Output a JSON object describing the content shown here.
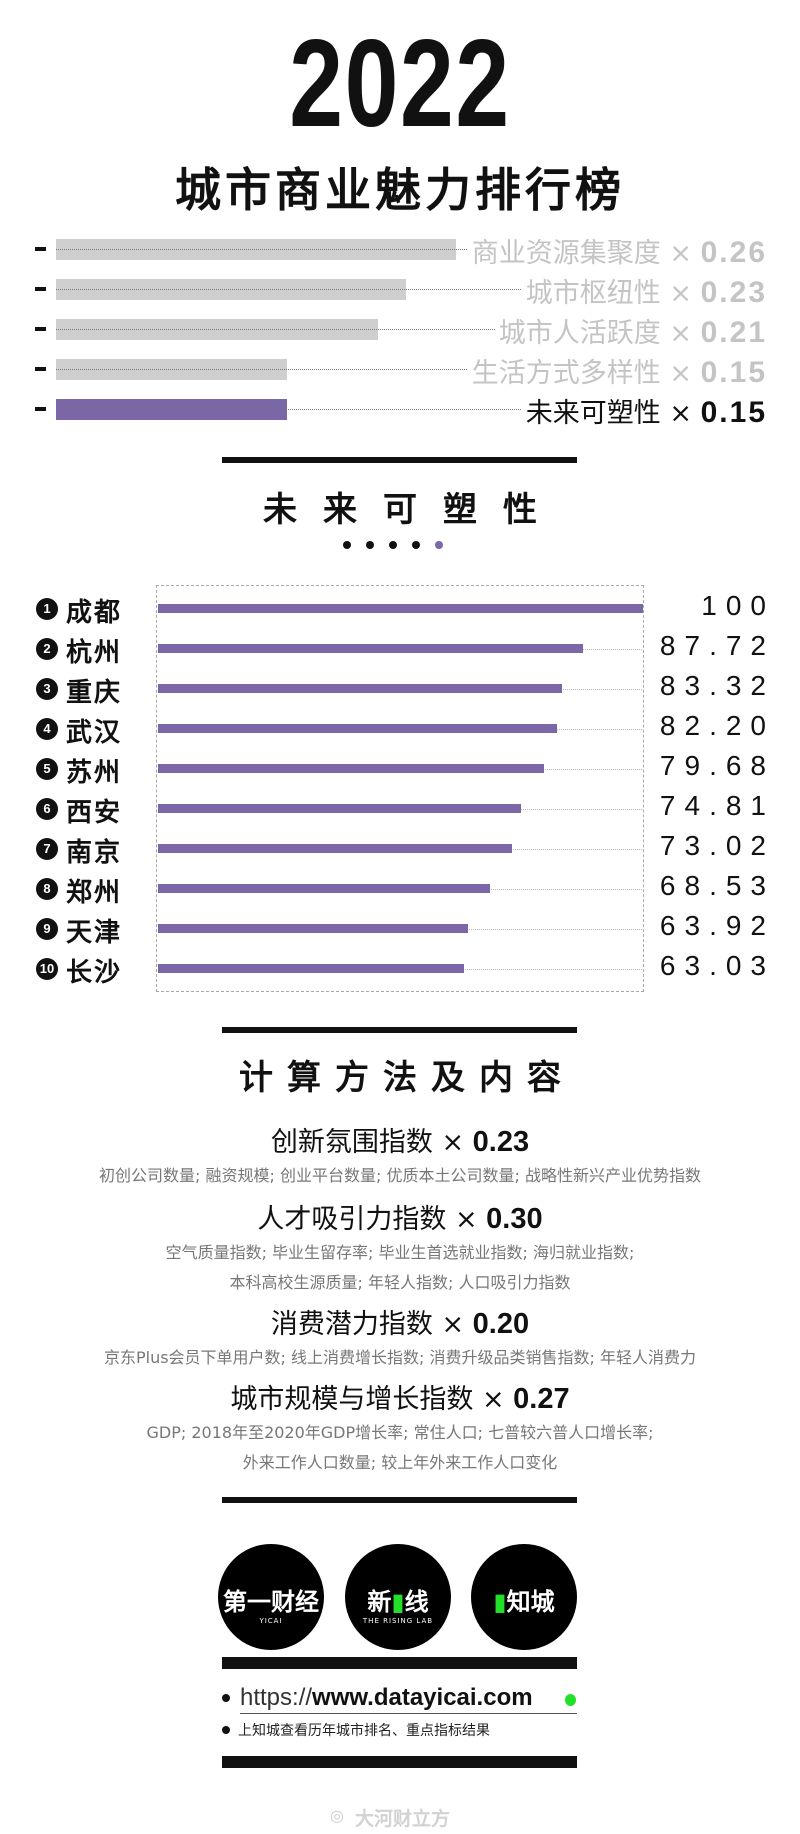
{
  "header": {
    "year": "2022",
    "subtitle": "城市商业魅力排行榜"
  },
  "weights": [
    {
      "label": "商业资源集聚度",
      "mult": "×",
      "value": "0.26",
      "active": false
    },
    {
      "label": "城市枢纽性",
      "mult": "×",
      "value": "0.23",
      "active": false
    },
    {
      "label": "城市人活跃度",
      "mult": "×",
      "value": "0.21",
      "active": false
    },
    {
      "label": "生活方式多样性",
      "mult": "×",
      "value": "0.15",
      "active": false
    },
    {
      "label": "未来可塑性",
      "mult": "×",
      "value": "0.15",
      "active": true
    }
  ],
  "section1": {
    "title": "未来可塑性"
  },
  "ranking": [
    {
      "rank": "1",
      "city": "成都",
      "score": "100"
    },
    {
      "rank": "2",
      "city": "杭州",
      "score": "87.72"
    },
    {
      "rank": "3",
      "city": "重庆",
      "score": "83.32"
    },
    {
      "rank": "4",
      "city": "武汉",
      "score": "82.20"
    },
    {
      "rank": "5",
      "city": "苏州",
      "score": "79.68"
    },
    {
      "rank": "6",
      "city": "西安",
      "score": "74.81"
    },
    {
      "rank": "7",
      "city": "南京",
      "score": "73.02"
    },
    {
      "rank": "8",
      "city": "郑州",
      "score": "68.53"
    },
    {
      "rank": "9",
      "city": "天津",
      "score": "63.92"
    },
    {
      "rank": "10",
      "city": "长沙",
      "score": "63.03"
    }
  ],
  "section2": {
    "title": "计算方法及内容"
  },
  "methods": [
    {
      "title": "创新氛围指数",
      "mult": "×",
      "value": "0.23",
      "details": [
        "初创公司数量; 融资规模; 创业平台数量; 优质本土公司数量; 战略性新兴产业优势指数"
      ]
    },
    {
      "title": "人才吸引力指数",
      "mult": "×",
      "value": "0.30",
      "details": [
        "空气质量指数; 毕业生留存率; 毕业生首选就业指数; 海归就业指数;",
        "本科高校生源质量; 年轻人指数; 人口吸引力指数"
      ]
    },
    {
      "title": "消费潜力指数",
      "mult": "×",
      "value": "0.20",
      "details": [
        "京东Plus会员下单用户数; 线上消费增长指数; 消费升级品类销售指数; 年轻人消费力"
      ]
    },
    {
      "title": "城市规模与增长指数",
      "mult": "×",
      "value": "0.27",
      "details": [
        "GDP; 2018年至2020年GDP增长率; 常住人口; 七普较六普人口增长率;",
        "外来工作人口数量; 较上年外来工作人口变化"
      ]
    }
  ],
  "logos": [
    {
      "text": "第一财经",
      "sub": "YICAI"
    },
    {
      "text": "新一线",
      "sub": "THE RISING LAB"
    },
    {
      "text": "知城",
      "sub": ""
    }
  ],
  "footer": {
    "url_prefix": "https://",
    "url_main": "www.datayicai.com",
    "note": "上知城查看历年城市排名、重点指标结果"
  },
  "watermark": "大河财立方",
  "colors": {
    "accent": "#7b66a8",
    "inactive_bar": "#cfcfcf",
    "inactive_text": "#c4c4c4",
    "green": "#22e02a"
  }
}
